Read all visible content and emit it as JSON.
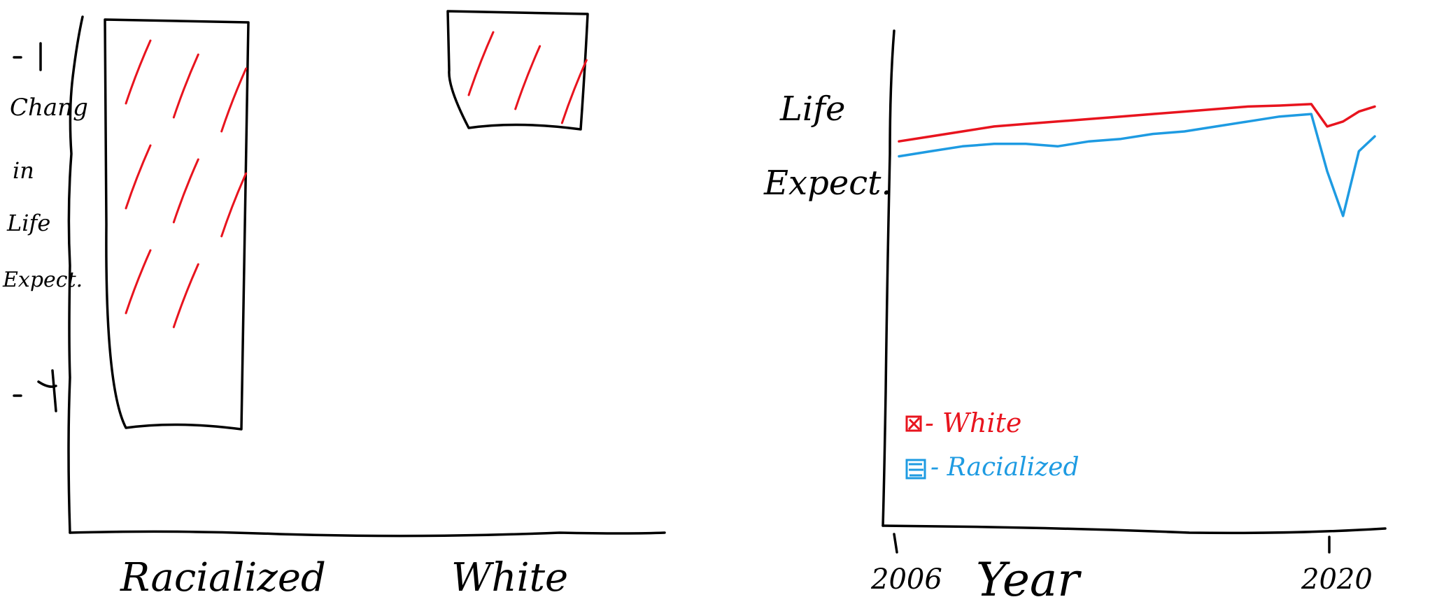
{
  "chart_data": [
    {
      "type": "bar",
      "categories": [
        "Racialized",
        "White"
      ],
      "values": [
        -4,
        -1
      ],
      "ylabel": "Change in Life Expect.",
      "ytick_labels": [
        "-1",
        "-4"
      ],
      "yticks": [
        -1,
        -4
      ],
      "category_labels": [
        "Racialized",
        "White"
      ],
      "colors": {
        "bar_edge": "#000000",
        "hatch": "#e8141e"
      }
    },
    {
      "type": "line",
      "xlabel": "Year",
      "ylabel": "Life Expect.",
      "x_tick_labels": [
        "2006",
        "2020"
      ],
      "xlim": [
        2006,
        2021
      ],
      "ylim": [
        75,
        84
      ],
      "series": [
        {
          "name": "White",
          "color": "#e8141e",
          "x": [
            2006,
            2007,
            2008,
            2009,
            2010,
            2011,
            2012,
            2013,
            2014,
            2015,
            2016,
            2017,
            2018,
            2019,
            2019.5,
            2020,
            2020.5,
            2021
          ],
          "y": [
            82.0,
            82.1,
            82.2,
            82.3,
            82.35,
            82.4,
            82.45,
            82.5,
            82.55,
            82.6,
            82.65,
            82.7,
            82.72,
            82.75,
            82.3,
            82.4,
            82.6,
            82.7
          ]
        },
        {
          "name": "Racialized",
          "color": "#1e9be2",
          "x": [
            2006,
            2007,
            2008,
            2009,
            2010,
            2011,
            2012,
            2013,
            2014,
            2015,
            2016,
            2017,
            2018,
            2019,
            2019.5,
            2020,
            2020.5,
            2021
          ],
          "y": [
            81.7,
            81.8,
            81.9,
            81.95,
            81.95,
            81.9,
            82.0,
            82.05,
            82.15,
            82.2,
            82.3,
            82.4,
            82.5,
            82.55,
            81.4,
            80.5,
            81.8,
            82.1
          ]
        }
      ],
      "legend": [
        {
          "label": "- White",
          "color": "#e8141e"
        },
        {
          "label": "- Racialized",
          "color": "#1e9be2"
        }
      ],
      "legend_position": "bottom-left"
    }
  ]
}
